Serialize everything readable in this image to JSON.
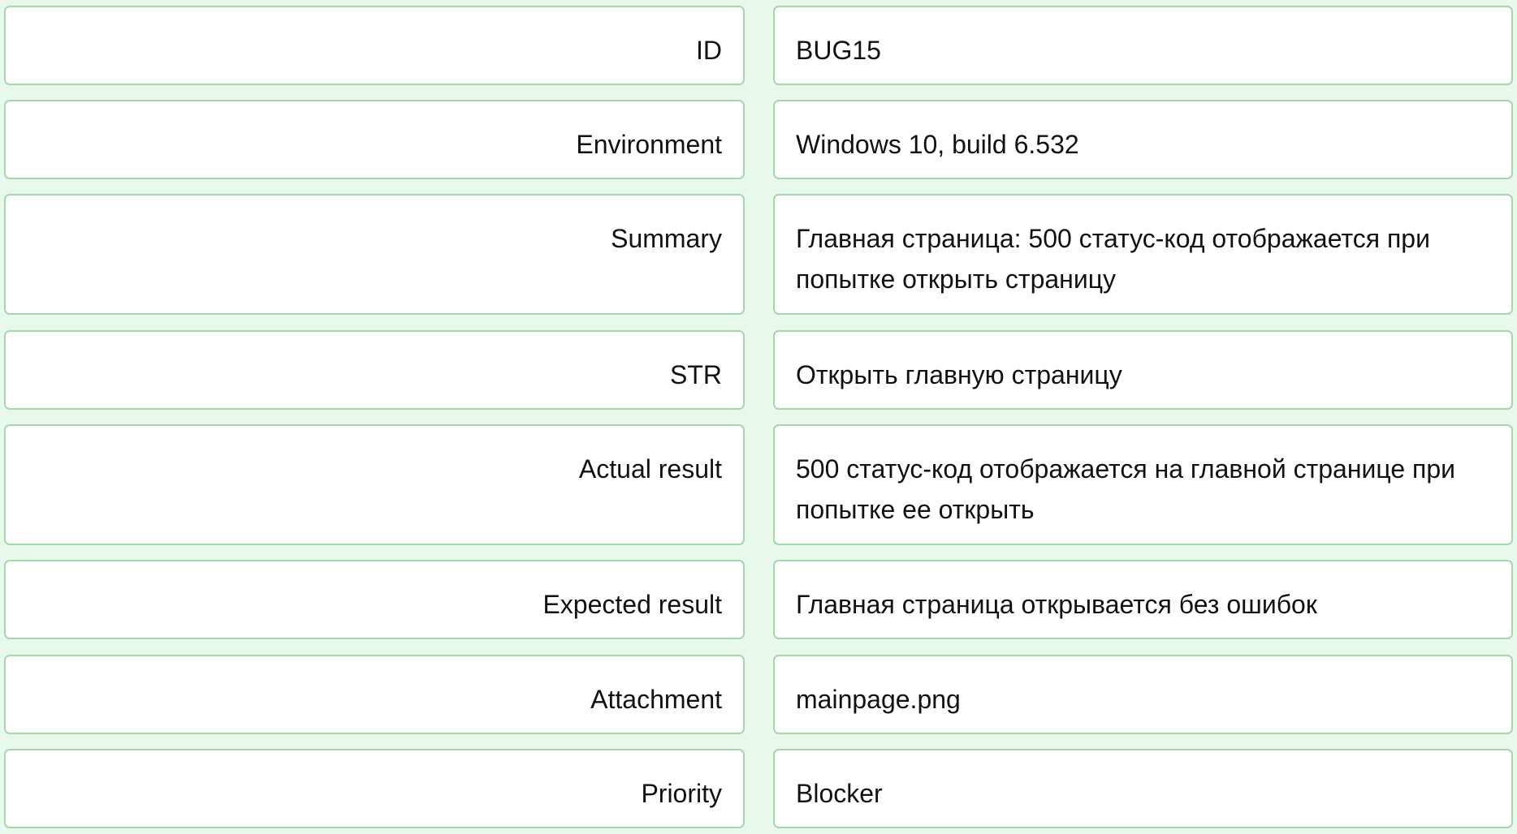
{
  "bug_report": {
    "rows": [
      {
        "label": "ID",
        "value": "BUG15"
      },
      {
        "label": "Environment",
        "value": "Windows 10, build 6.532"
      },
      {
        "label": "Summary",
        "value": "Главная страница: 500 статус-код отображается при попытке открыть страницу"
      },
      {
        "label": "STR",
        "value": "Открыть главную страницу"
      },
      {
        "label": "Actual result",
        "value": "500 статус-код отображается на главной странице при попытке ее открыть"
      },
      {
        "label": "Expected result",
        "value": "Главная страница открывается без ошибок"
      },
      {
        "label": "Attachment",
        "value": "mainpage.png"
      },
      {
        "label": "Priority",
        "value": "Blocker"
      }
    ]
  },
  "colors": {
    "page_background": "#e8f8ea",
    "cell_background": "#ffffff",
    "cell_border": "#a3d9a9",
    "text": "#111111"
  }
}
